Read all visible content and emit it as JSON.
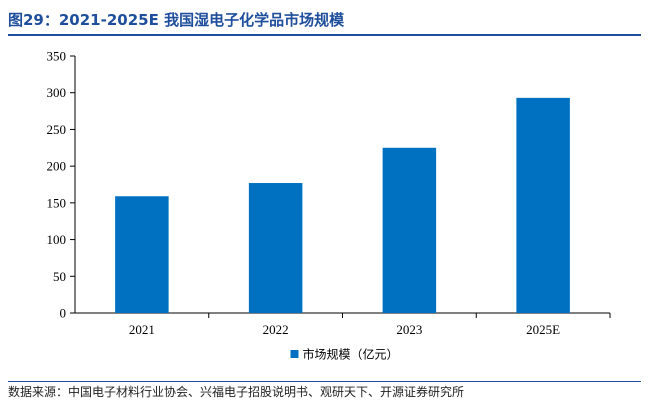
{
  "title": "图29：2021-2025E 我国湿电子化学品市场规模",
  "source": "数据来源：中国电子材料行业协会、兴福电子招股说明书、观研天下、开源证券研究所",
  "chart_data": {
    "type": "bar",
    "categories": [
      "2021",
      "2022",
      "2023",
      "2025E"
    ],
    "series": [
      {
        "name": "市场规模（亿元）",
        "values": [
          159,
          177,
          225,
          293
        ]
      }
    ],
    "ylim": [
      0,
      350
    ],
    "yticks": [
      0,
      50,
      100,
      150,
      200,
      250,
      300,
      350
    ],
    "grid": false,
    "legend": "bottom-center",
    "bar_color": "#0070c0"
  }
}
